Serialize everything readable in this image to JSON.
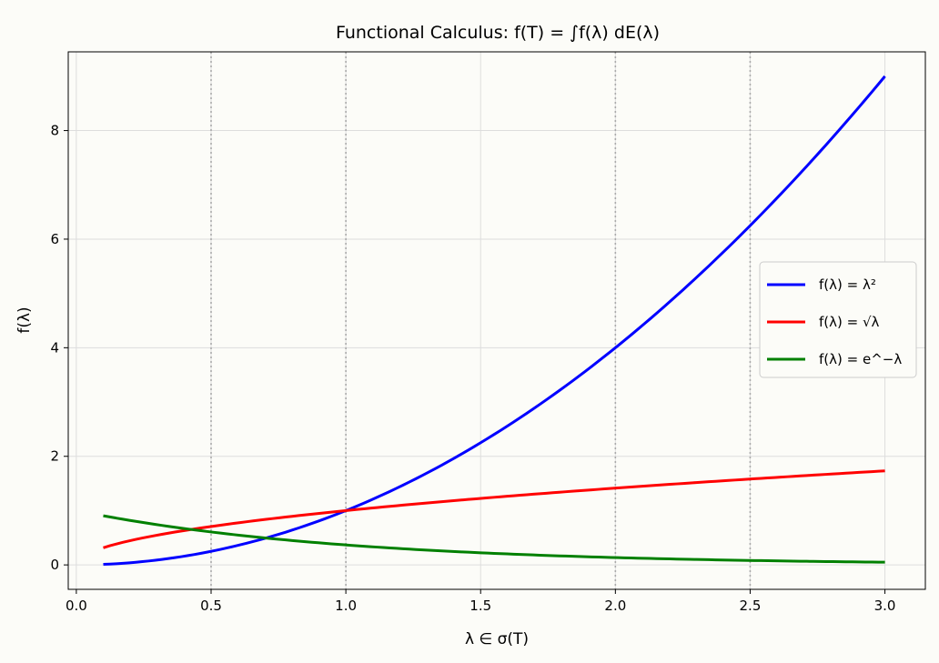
{
  "chart_data": {
    "type": "line",
    "title": "Functional Calculus: f(T) = ∫f(λ) dE(λ)",
    "xlabel": "λ ∈ σ(T)",
    "ylabel": "f(λ)",
    "xlim": [
      -0.03,
      3.15
    ],
    "ylim": [
      -0.45,
      9.45
    ],
    "xticks": [
      0.0,
      0.5,
      1.0,
      1.5,
      2.0,
      2.5,
      3.0
    ],
    "xtick_labels": [
      "0.0",
      "0.5",
      "1.0",
      "1.5",
      "2.0",
      "2.5",
      "3.0"
    ],
    "yticks": [
      0,
      2,
      4,
      6,
      8
    ],
    "ytick_labels": [
      "0",
      "2",
      "4",
      "6",
      "8"
    ],
    "grid": true,
    "vertical_reference_lines": [
      0.5,
      1.0,
      2.0,
      2.5
    ],
    "legend_position": "center-right",
    "x": [
      0.1,
      0.25,
      0.5,
      0.75,
      1.0,
      1.25,
      1.5,
      1.75,
      2.0,
      2.25,
      2.5,
      2.75,
      3.0
    ],
    "series": [
      {
        "name": "f(λ) = λ²",
        "color": "#0000ff",
        "values": [
          0.01,
          0.0625,
          0.25,
          0.5625,
          1.0,
          1.5625,
          2.25,
          3.0625,
          4.0,
          5.0625,
          6.25,
          7.5625,
          9.0
        ]
      },
      {
        "name": "f(λ) = √λ",
        "color": "#ff0000",
        "values": [
          0.316,
          0.5,
          0.707,
          0.866,
          1.0,
          1.118,
          1.225,
          1.323,
          1.414,
          1.5,
          1.581,
          1.658,
          1.732
        ]
      },
      {
        "name": "f(λ) = e^−λ",
        "color": "#008000",
        "values": [
          0.905,
          0.779,
          0.607,
          0.472,
          0.368,
          0.287,
          0.223,
          0.174,
          0.135,
          0.105,
          0.082,
          0.064,
          0.05
        ]
      }
    ]
  }
}
